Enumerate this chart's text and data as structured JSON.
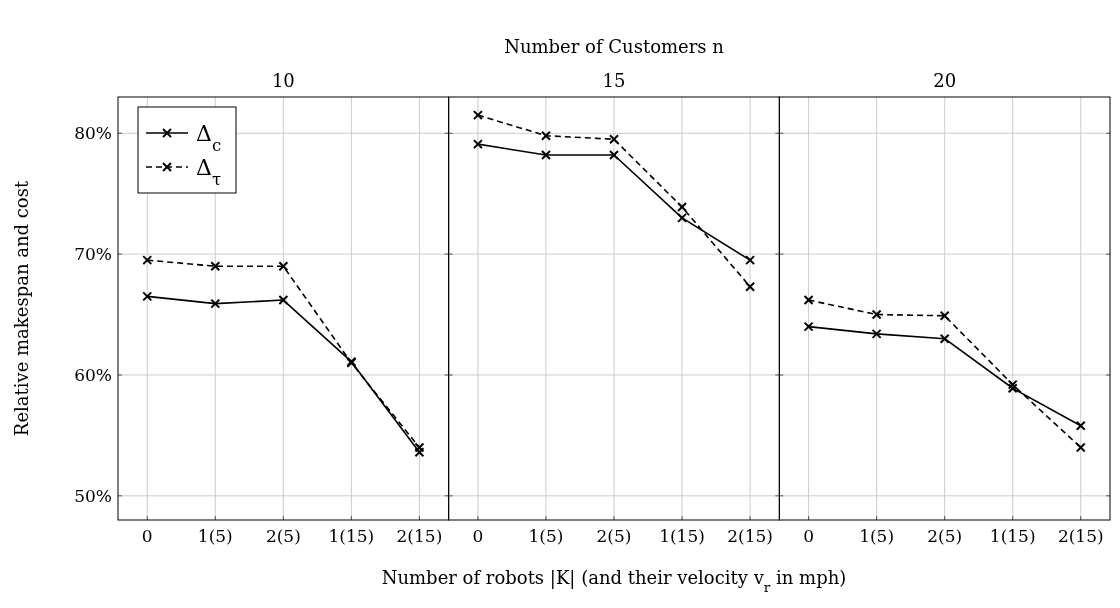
{
  "chart_data": [
    {
      "type": "line",
      "title": "10",
      "ylabel": "Relative makespan and cost",
      "categories": [
        "0",
        "1(5)",
        "2(5)",
        "1(15)",
        "2(15)"
      ],
      "series": [
        {
          "name": "Δ$_{c}$",
          "color": "#000000",
          "line_style": "solid",
          "values": [
            66.5,
            65.9,
            66.2,
            61.1,
            53.6
          ]
        },
        {
          "name": "Δ$_{τ}$",
          "color": "#000000",
          "line_style": "dashed",
          "values": [
            69.5,
            69.0,
            69.0,
            61.0,
            54.0
          ]
        }
      ],
      "ylim": [
        48,
        83
      ],
      "yticks": [
        {
          "value": 50,
          "label": "50%"
        },
        {
          "value": 60,
          "label": "60%"
        },
        {
          "value": 70,
          "label": "70%"
        },
        {
          "value": 80,
          "label": "80%"
        }
      ],
      "grid": true,
      "legend": "top left",
      "marker": "cross"
    },
    {
      "type": "line",
      "title": "15",
      "xlabel": "Number of robots |K| (and their velocity v$_{r}$ in mph)",
      "annotations": [
        "Number of Customers n"
      ],
      "categories": [
        "0",
        "1(5)",
        "2(5)",
        "1(15)",
        "2(15)"
      ],
      "series": [
        {
          "color": "#000000",
          "line_style": "solid",
          "values": [
            79.1,
            78.2,
            78.2,
            73.0,
            69.5
          ]
        },
        {
          "color": "#000000",
          "line_style": "dashed",
          "values": [
            81.5,
            79.8,
            79.5,
            73.9,
            67.3
          ]
        }
      ],
      "ylim": [
        48,
        83
      ],
      "yticks": [
        50,
        60,
        70,
        80
      ],
      "grid": true,
      "marker": "cross",
      "tick_labels": "x"
    },
    {
      "type": "line",
      "title": "20",
      "categories": [
        "0",
        "1(5)",
        "2(5)",
        "1(15)",
        "2(15)"
      ],
      "series": [
        {
          "color": "#000000",
          "line_style": "solid",
          "values": [
            64.0,
            63.4,
            63.0,
            58.9,
            55.8
          ]
        },
        {
          "color": "#000000",
          "line_style": "dashed",
          "values": [
            66.2,
            65.0,
            64.9,
            59.2,
            54.0
          ]
        }
      ],
      "ylim": [
        48,
        83
      ],
      "yticks": [
        50,
        60,
        70,
        80
      ],
      "grid": true,
      "marker": "cross",
      "tick_labels": "x"
    }
  ]
}
